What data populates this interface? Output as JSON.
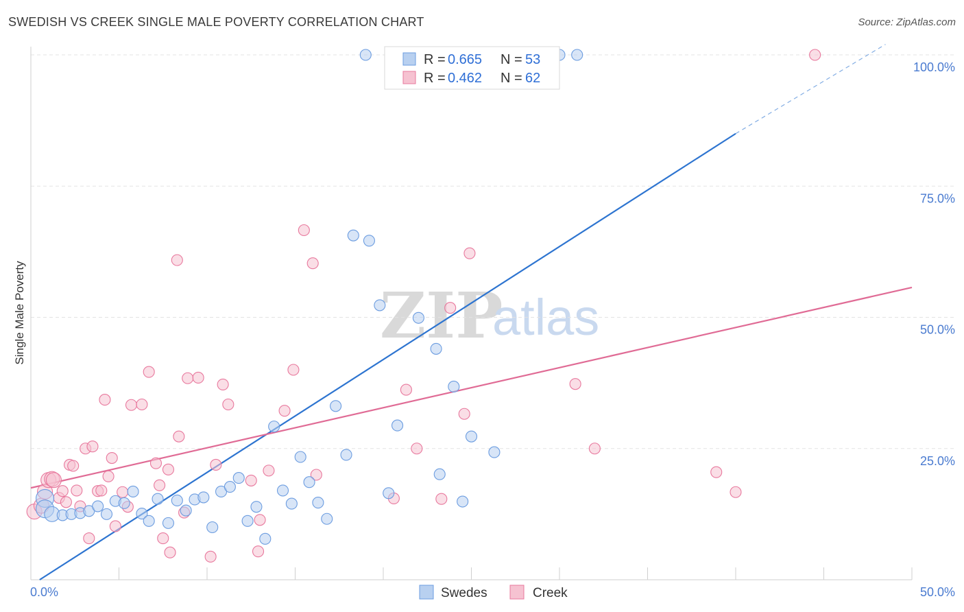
{
  "title": "SWEDISH VS CREEK SINGLE MALE POVERTY CORRELATION CHART",
  "source": "Source: ZipAtlas.com",
  "watermark": {
    "zip": "ZIP",
    "atlas": "atlas"
  },
  "colors": {
    "swedes": "#6b9ce0",
    "swedes_fill": "#b8d0f0",
    "creek": "#e8789d",
    "creek_fill": "#f6c2d1",
    "swedes_line": "#2d74d0",
    "creek_line": "#e06b95",
    "tick": "#4a7bd0"
  },
  "legend": [
    {
      "r_label": "R =",
      "r_value": "0.665",
      "n_label": "N =",
      "n_value": "53"
    },
    {
      "r_label": "R =",
      "r_value": "0.462",
      "n_label": "N =",
      "n_value": "62"
    }
  ],
  "chart_data": {
    "type": "scatter",
    "title": "SWEDISH VS CREEK SINGLE MALE POVERTY CORRELATION CHART",
    "xlabel": "",
    "ylabel": "Single Male Poverty",
    "xlim": [
      0,
      50
    ],
    "ylim": [
      0,
      100
    ],
    "x_tick_labels": [
      "0.0%",
      "50.0%"
    ],
    "y_tick_labels": [
      "25.0%",
      "50.0%",
      "75.0%",
      "100.0%"
    ],
    "y_ticks": [
      25,
      50,
      75,
      100
    ],
    "grid": true,
    "legend_position": "bottom",
    "series": [
      {
        "name": "Swedes",
        "trendline": {
          "x": [
            0.5,
            40
          ],
          "y": [
            0,
            85
          ]
        },
        "trendline_dashed_extension": {
          "x": [
            40,
            48.5
          ],
          "y": [
            85,
            102
          ]
        },
        "points": [
          [
            0.8,
            15.5
          ],
          [
            0.8,
            13.5
          ],
          [
            1.2,
            12.5
          ],
          [
            1.8,
            12.3
          ],
          [
            2.3,
            12.5
          ],
          [
            2.8,
            12.7
          ],
          [
            3.3,
            13.1
          ],
          [
            3.8,
            14.0
          ],
          [
            4.3,
            12.5
          ],
          [
            4.8,
            15.0
          ],
          [
            5.3,
            14.6
          ],
          [
            5.8,
            16.8
          ],
          [
            6.3,
            12.6
          ],
          [
            6.7,
            11.2
          ],
          [
            7.2,
            15.4
          ],
          [
            7.8,
            10.8
          ],
          [
            8.3,
            15.1
          ],
          [
            8.8,
            13.2
          ],
          [
            9.3,
            15.3
          ],
          [
            9.8,
            15.7
          ],
          [
            10.3,
            10.0
          ],
          [
            10.8,
            16.8
          ],
          [
            11.3,
            17.7
          ],
          [
            11.8,
            19.4
          ],
          [
            12.3,
            11.2
          ],
          [
            12.8,
            13.9
          ],
          [
            13.3,
            7.8
          ],
          [
            13.8,
            29.2
          ],
          [
            14.3,
            17.0
          ],
          [
            14.8,
            14.5
          ],
          [
            15.3,
            23.4
          ],
          [
            15.8,
            18.6
          ],
          [
            16.3,
            14.7
          ],
          [
            16.8,
            11.6
          ],
          [
            17.3,
            33.1
          ],
          [
            17.9,
            23.8
          ],
          [
            18.3,
            65.6
          ],
          [
            19.2,
            64.6
          ],
          [
            19.8,
            52.3
          ],
          [
            20.3,
            16.5
          ],
          [
            20.8,
            29.4
          ],
          [
            22.0,
            49.9
          ],
          [
            23.0,
            44.0
          ],
          [
            23.2,
            20.1
          ],
          [
            24.0,
            36.8
          ],
          [
            24.5,
            14.9
          ],
          [
            25.0,
            27.3
          ],
          [
            26.3,
            24.3
          ],
          [
            19.0,
            100
          ],
          [
            28.0,
            100
          ],
          [
            29.0,
            100
          ],
          [
            30.0,
            100
          ],
          [
            31.0,
            100
          ]
        ]
      },
      {
        "name": "Creek",
        "trendline": {
          "x": [
            0,
            50
          ],
          "y": [
            17.5,
            55.7
          ]
        },
        "points": [
          [
            0.2,
            13.0
          ],
          [
            0.6,
            14.1
          ],
          [
            0.8,
            16.8
          ],
          [
            1.0,
            19.0
          ],
          [
            1.2,
            19.2
          ],
          [
            1.3,
            19.0
          ],
          [
            1.6,
            15.6
          ],
          [
            1.8,
            16.9
          ],
          [
            2.0,
            14.8
          ],
          [
            2.2,
            21.9
          ],
          [
            2.4,
            21.7
          ],
          [
            2.6,
            17.0
          ],
          [
            2.8,
            14.0
          ],
          [
            3.1,
            25.0
          ],
          [
            3.3,
            7.9
          ],
          [
            3.5,
            25.4
          ],
          [
            3.8,
            16.9
          ],
          [
            4.0,
            17.0
          ],
          [
            4.2,
            34.3
          ],
          [
            4.4,
            19.7
          ],
          [
            4.6,
            23.2
          ],
          [
            4.8,
            10.2
          ],
          [
            5.2,
            16.7
          ],
          [
            5.5,
            13.9
          ],
          [
            5.7,
            33.3
          ],
          [
            6.3,
            33.4
          ],
          [
            6.7,
            39.6
          ],
          [
            7.1,
            22.2
          ],
          [
            7.3,
            18.0
          ],
          [
            7.8,
            21.0
          ],
          [
            7.5,
            7.9
          ],
          [
            7.9,
            5.2
          ],
          [
            8.3,
            60.9
          ],
          [
            8.4,
            27.3
          ],
          [
            8.7,
            12.8
          ],
          [
            8.9,
            38.4
          ],
          [
            9.5,
            38.5
          ],
          [
            10.2,
            4.4
          ],
          [
            10.5,
            21.9
          ],
          [
            10.9,
            37.2
          ],
          [
            11.2,
            33.4
          ],
          [
            12.5,
            18.9
          ],
          [
            12.9,
            5.4
          ],
          [
            13.0,
            11.4
          ],
          [
            13.5,
            20.8
          ],
          [
            14.4,
            32.2
          ],
          [
            14.9,
            40.0
          ],
          [
            15.5,
            66.6
          ],
          [
            16.0,
            60.3
          ],
          [
            16.2,
            20.0
          ],
          [
            20.6,
            15.5
          ],
          [
            21.3,
            36.2
          ],
          [
            21.9,
            25.0
          ],
          [
            23.3,
            15.4
          ],
          [
            23.8,
            51.8
          ],
          [
            24.6,
            31.6
          ],
          [
            24.9,
            62.2
          ],
          [
            30.9,
            37.3
          ],
          [
            32.0,
            25.0
          ],
          [
            38.9,
            20.5
          ],
          [
            40.0,
            16.7
          ],
          [
            44.5,
            100
          ]
        ]
      }
    ]
  },
  "bottom_legend": [
    {
      "label": "Swedes"
    },
    {
      "label": "Creek"
    }
  ]
}
